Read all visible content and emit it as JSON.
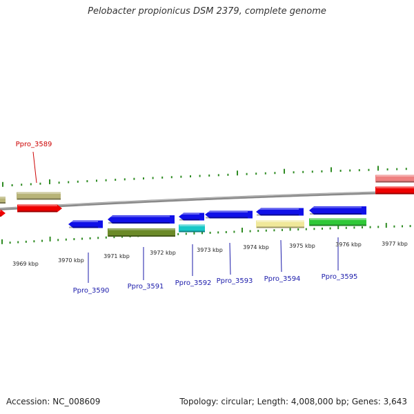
{
  "title": "Pelobacter propionicus DSM 2379, complete genome",
  "footer": {
    "accession": "Accession: NC_008609",
    "topology": "Topology: circular; Length: 4,008,000 bp; Genes: 3,643"
  },
  "scale_labels": [
    "3969 kbp",
    "3970 kbp",
    "3971 kbp",
    "3972 kbp",
    "3973 kbp",
    "3974 kbp",
    "3975 kbp",
    "3976 kbp",
    "3977 kbp"
  ],
  "gene_labels": {
    "top": [
      "Ppro_3589"
    ],
    "bottom": [
      "Ppro_3590",
      "Ppro_3591",
      "Ppro_3592",
      "Ppro_3593",
      "Ppro_3594",
      "Ppro_3595"
    ]
  },
  "colors": {
    "backbone": "#8a8a8a",
    "ticks": "#2e8b22",
    "label_top": "#cc0000",
    "label_bottom": "#1a1aaa",
    "leader_top": "#cc0000",
    "leader_bottom": "#1a1aaa",
    "red": "#ee0000",
    "salmon": "#ee8080",
    "khaki": "#b8b478",
    "blue": "#1010e8",
    "olive": "#6b8a28",
    "cyan": "#18c8c8",
    "paleyellow": "#f0e89a",
    "green": "#30c838"
  }
}
